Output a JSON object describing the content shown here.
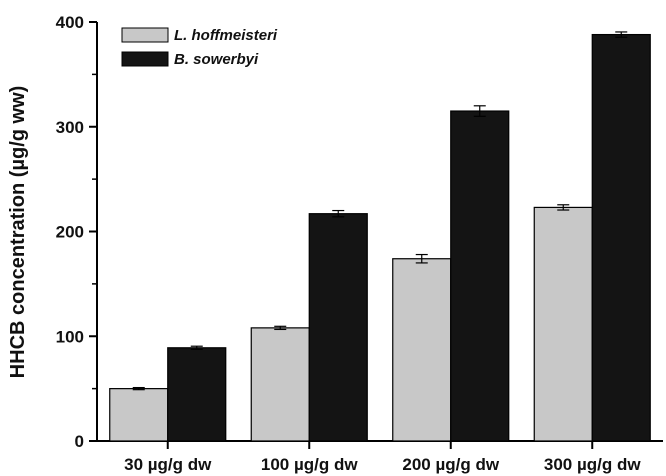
{
  "chart_data": {
    "type": "bar",
    "title": "",
    "xlabel": "",
    "ylabel": "HHCB concentration (µg/g ww)",
    "ylim": [
      0,
      400
    ],
    "yticks": [
      0,
      100,
      200,
      300,
      400
    ],
    "grid": false,
    "legend_position": "top-left",
    "categories": [
      "30 µg/g dw",
      "100 µg/g dw",
      "200 µg/g dw",
      "300 µg/g dw"
    ],
    "series": [
      {
        "name": "L. hoffmeisteri",
        "color": "#c8c8c8",
        "values": [
          50,
          108,
          174,
          223
        ],
        "errors": [
          1,
          1.5,
          4,
          2.5
        ]
      },
      {
        "name": "B. sowerbyi",
        "color": "#141414",
        "values": [
          89,
          217,
          315,
          388
        ],
        "errors": [
          1.5,
          3,
          5,
          2.5
        ]
      }
    ]
  }
}
